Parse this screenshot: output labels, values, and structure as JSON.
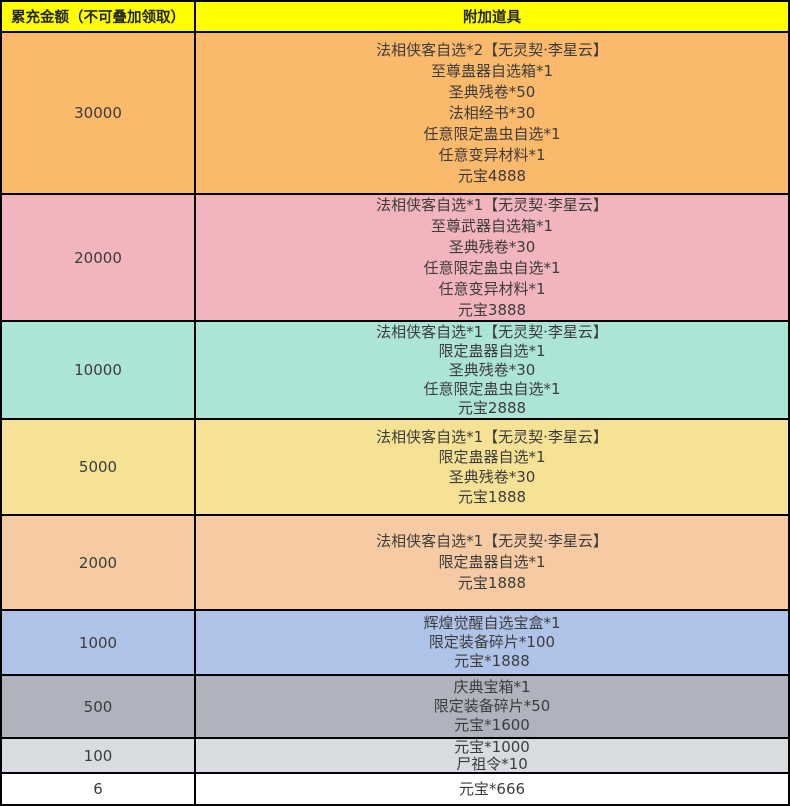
{
  "colors": {
    "header_bg": "#FFFF00",
    "border": "#000000",
    "body_text": "#3C3C3C",
    "header_text": "#262626"
  },
  "header": {
    "amount_label": "累充金额（不可叠加领取）",
    "items_label": "附加道具"
  },
  "rows": [
    {
      "amount": "30000",
      "bg": "#FBB96B",
      "items": [
        "法相侠客自选*2【无灵契·李星云】",
        "至尊蛊器自选箱*1",
        "圣典残卷*50",
        "法相经书*30",
        "任意限定蛊虫自选*1",
        "任意变异材料*1",
        "元宝4888"
      ]
    },
    {
      "amount": "20000",
      "bg": "#F2B4BD",
      "items": [
        "法相侠客自选*1【无灵契·李星云】",
        "至尊武器自选箱*1",
        "圣典残卷*30",
        "任意限定蛊虫自选*1",
        "任意变异材料*1",
        "元宝3888"
      ]
    },
    {
      "amount": "10000",
      "bg": "#ACE4D8",
      "items": [
        "法相侠客自选*1【无灵契·李星云】",
        "限定蛊器自选*1",
        "圣典残卷*30",
        "任意限定蛊虫自选*1",
        "元宝2888"
      ]
    },
    {
      "amount": "5000",
      "bg": "#F6E294",
      "items": [
        "法相侠客自选*1【无灵契·李星云】",
        "限定蛊器自选*1",
        "圣典残卷*30",
        "元宝1888"
      ]
    },
    {
      "amount": "2000",
      "bg": "#F6CBA3",
      "items": [
        "法相侠客自选*1【无灵契·李星云】",
        "限定蛊器自选*1",
        "元宝1888"
      ]
    },
    {
      "amount": "1000",
      "bg": "#AFC3E9",
      "items": [
        "辉煌觉醒自选宝盒*1",
        "限定装备碎片*100",
        "元宝*1888"
      ]
    },
    {
      "amount": "500",
      "bg": "#AEB3BD",
      "items": [
        "庆典宝箱*1",
        "限定装备碎片*50",
        "元宝*1600"
      ]
    },
    {
      "amount": "100",
      "bg": "#D8DCE0",
      "items": [
        "元宝*1000",
        "尸祖令*10"
      ]
    },
    {
      "amount": "6",
      "bg": "#FFFFFF",
      "items": [
        "元宝*666"
      ]
    }
  ]
}
